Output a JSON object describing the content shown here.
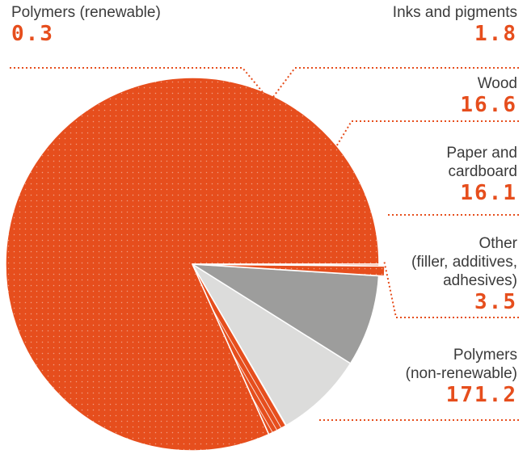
{
  "chart_data": {
    "type": "pie",
    "slices": [
      {
        "label": "Polymers (non-renewable)",
        "value": 171.2,
        "color": "#e64e1d"
      },
      {
        "label": "Other (filler, additives, adhesives)",
        "value": 3.5,
        "color": "#e64e1d"
      },
      {
        "label": "Paper and cardboard",
        "value": 16.1,
        "color": "#dcdcdb"
      },
      {
        "label": "Wood",
        "value": 16.6,
        "color": "#9d9d9c"
      },
      {
        "label": "Inks and pigments",
        "value": 1.8,
        "color": "#e64e1d"
      },
      {
        "label": "Polymers (renewable)",
        "value": 0.3,
        "color": "#e64e1d"
      }
    ],
    "labels": {
      "poly_ren": {
        "name": "Polymers (renewable)",
        "value": "0.3"
      },
      "inks": {
        "name": "Inks and pigments",
        "value": "1.8"
      },
      "wood": {
        "name": "Wood",
        "value": "16.6"
      },
      "paper": {
        "name": "Paper and\ncardboard",
        "value": "16.1"
      },
      "other": {
        "name": "Other\n(filler, additives,\nadhesives)",
        "value": "3.5"
      },
      "poly_nonren": {
        "name": "Polymers\n(non-renewable)",
        "value": "171.2"
      }
    },
    "accent_color": "#e64e1d",
    "leader_color": "#e64e1d"
  }
}
